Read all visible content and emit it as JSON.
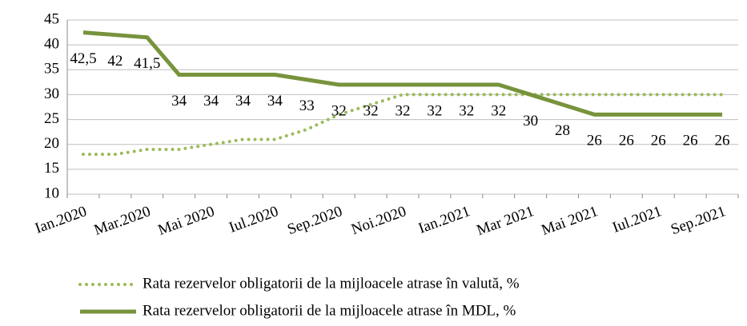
{
  "chart_data": {
    "type": "line",
    "categories": [
      "Ian.2020",
      null,
      "Mar.2020",
      null,
      "Mai 2020",
      null,
      "Iul.2020",
      null,
      "Sep.2020",
      null,
      "Noi.2020",
      null,
      "Ian.2021",
      null,
      "Mar 2021",
      null,
      "Mai 2021",
      null,
      "Iul.2021",
      null,
      "Sep.2021"
    ],
    "series": [
      {
        "name": "Rata rezervelor obligatorii de la mijloacele atrase în valută, %",
        "color": "#9bbb59",
        "dash": "dotted",
        "values": [
          18,
          18,
          19,
          19,
          20,
          21,
          21,
          23,
          26,
          28,
          30,
          30,
          30,
          30,
          30,
          30,
          30,
          30,
          30,
          30,
          30
        ]
      },
      {
        "name": "Rata rezervelor obligatorii de la mijloacele atrase în MDL, %",
        "color": "#77933c",
        "dash": "solid",
        "values": [
          42.5,
          42,
          41.5,
          34,
          34,
          34,
          34,
          33,
          32,
          32,
          32,
          32,
          32,
          32,
          30,
          28,
          26,
          26,
          26,
          26,
          26
        ],
        "value_labels": [
          "42,5",
          "42",
          "41,5",
          "34",
          "34",
          "34",
          "34",
          "33",
          "32",
          "32",
          "32",
          "32",
          "32",
          "32",
          "30",
          "28",
          "26",
          "26",
          "26",
          "26",
          "26"
        ]
      }
    ],
    "ylim": [
      10,
      45
    ],
    "yticks": [
      10,
      15,
      20,
      25,
      30,
      35,
      40,
      45
    ],
    "grid": true
  }
}
